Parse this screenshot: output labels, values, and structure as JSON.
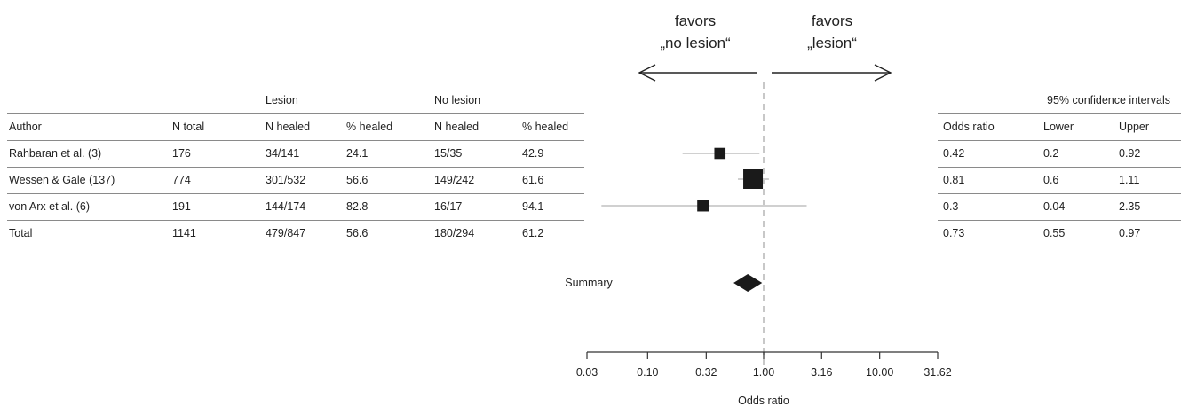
{
  "left_table": {
    "group_headers": {
      "lesion": "Lesion",
      "no_lesion": "No lesion"
    },
    "columns": [
      "Author",
      "N total",
      "N healed",
      "% healed",
      "N healed",
      "% healed"
    ],
    "rows": [
      [
        "Rahbaran et al. (3)",
        "176",
        "34/141",
        "24.1",
        "15/35",
        "42.9"
      ],
      [
        "Wessen & Gale (137)",
        "774",
        "301/532",
        "56.6",
        "149/242",
        "61.6"
      ],
      [
        "von Arx et al. (6)",
        "191",
        "144/174",
        "82.8",
        "16/17",
        "94.1"
      ],
      [
        "Total",
        "1141",
        "479/847",
        "56.6",
        "180/294",
        "61.2"
      ]
    ]
  },
  "right_table": {
    "group_header": "95% confidence intervals",
    "columns": [
      "Odds ratio",
      "Lower",
      "Upper"
    ],
    "rows": [
      [
        "0.42",
        "0.2",
        "0.92"
      ],
      [
        "0.81",
        "0.6",
        "1.11"
      ],
      [
        "0.3",
        "0.04",
        "2.35"
      ],
      [
        "0.73",
        "0.55",
        "0.97"
      ]
    ]
  },
  "chart_data": {
    "type": "forest",
    "xlabel": "Odds ratio",
    "x_scale": "log",
    "xlim": [
      0.03,
      31.62
    ],
    "x_ticks": [
      "0.03",
      "0.10",
      "0.32",
      "1.00",
      "3.16",
      "10.00",
      "31.62"
    ],
    "reference_line": 1.0,
    "favors_left": [
      "favors",
      "„no lesion“"
    ],
    "favors_right": [
      "favors",
      "„lesion“"
    ],
    "summary_label": "Summary",
    "studies": [
      {
        "or": 0.42,
        "lower": 0.2,
        "upper": 0.92,
        "weight": 176
      },
      {
        "or": 0.81,
        "lower": 0.6,
        "upper": 1.11,
        "weight": 774
      },
      {
        "or": 0.3,
        "lower": 0.04,
        "upper": 2.35,
        "weight": 191
      }
    ],
    "summary": {
      "or": 0.73,
      "lower": 0.55,
      "upper": 0.97
    },
    "colors": {
      "ci_line": "#d0d0d0",
      "marker": "#1a1a1a",
      "ref_line": "#c8c8c8",
      "axis": "#333333"
    }
  }
}
